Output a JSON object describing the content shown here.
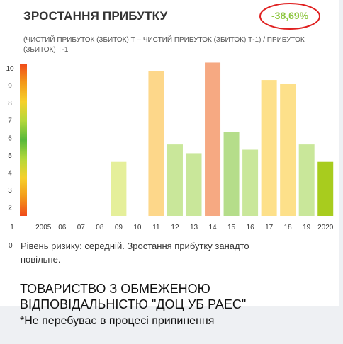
{
  "header": {
    "title": "ЗРОСТАННЯ ПРИБУТКУ",
    "change_value": "-38,69%",
    "formula": "(ЧИСТИЙ ПРИБУТОК (ЗБИТОК) Т – ЧИСТИЙ ПРИБУТОК (ЗБИТОК) Т-1) / ПРИБУТОК (ЗБИТОК) Т-1"
  },
  "risk": {
    "zero_label": "0",
    "text": "Рівень ризику: середній. Зростання прибутку занадто повільне."
  },
  "company": {
    "name": "ТОВАРИСТВО З ОБМЕЖЕНОЮ ВІДПОВІДАЛЬНІСТЮ \"ДОЦ УБ РАЕС\"",
    "status": "*Не перебуває в процесі припинення"
  },
  "colors": {
    "highlight_ring": "#e02020",
    "change_value": "#8dc63f"
  },
  "chart_data": {
    "type": "bar",
    "categories": [
      "2005",
      "06",
      "07",
      "08",
      "09",
      "10",
      "11",
      "12",
      "13",
      "14",
      "15",
      "16",
      "17",
      "18",
      "19",
      "2020"
    ],
    "values": [
      null,
      null,
      null,
      null,
      4.6,
      null,
      9.8,
      5.6,
      5.1,
      10.3,
      6.3,
      5.3,
      9.3,
      9.1,
      5.6,
      4.6
    ],
    "colors": [
      null,
      null,
      null,
      null,
      "#e5ef9a",
      null,
      "#fdd78a",
      "#c9e79a",
      "#c9e79a",
      "#f6a982",
      "#b5dd8a",
      "#c9e79a",
      "#fde08a",
      "#fde08a",
      "#c9e79a",
      "#a8cc1e"
    ],
    "y_ticks": [
      "2",
      "3",
      "4",
      "5",
      "6",
      "7",
      "8",
      "9",
      "10"
    ],
    "x_axis_start_label": "1",
    "ylim": [
      1.5,
      10.4
    ],
    "risk_scale": {
      "colors": [
        "#f04a1a",
        "#f39a1a",
        "#f6d02a",
        "#b4d83a",
        "#56b83a",
        "#b4d83a",
        "#f6d02a",
        "#f39a1a",
        "#f04a1a"
      ]
    }
  }
}
